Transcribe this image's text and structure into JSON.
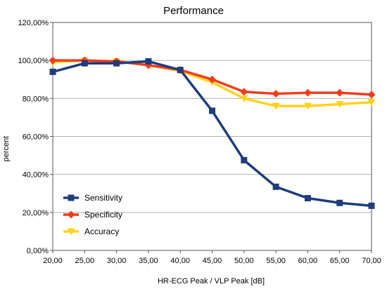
{
  "chart_data": {
    "type": "line",
    "title": "Performance",
    "xlabel": "HR-ECG Peak / VLP Peak [dB]",
    "ylabel": "percent",
    "x": [
      20,
      25,
      30,
      35,
      40,
      45,
      50,
      55,
      60,
      65,
      70
    ],
    "x_tick_labels": [
      "20,00",
      "25,00",
      "30,00",
      "35,00",
      "40,00",
      "45,00",
      "50,00",
      "55,00",
      "60,00",
      "65,00",
      "70,00"
    ],
    "ylim": [
      0,
      120
    ],
    "y_ticks": [
      0,
      20,
      40,
      60,
      80,
      100,
      120
    ],
    "y_tick_labels": [
      "0,00%",
      "20,00%",
      "40,00%",
      "60,00%",
      "80,00%",
      "100,00%",
      "120,00%"
    ],
    "grid": "horizontal",
    "legend_position": "bottom-left",
    "series": [
      {
        "name": "Sensitivity",
        "color": "#1f3d7a",
        "marker": "square",
        "values": [
          94,
          98.5,
          98.5,
          99.5,
          95,
          73.5,
          47.5,
          33.5,
          27.5,
          25,
          23.5
        ]
      },
      {
        "name": "Specificity",
        "color": "#f03c1e",
        "marker": "diamond",
        "values": [
          100,
          100,
          99.5,
          97.5,
          95,
          90,
          83.5,
          82.5,
          83,
          83,
          82
        ]
      },
      {
        "name": "Accuracy",
        "color": "#ffd21e",
        "marker": "triangle",
        "values": [
          99,
          100,
          99.5,
          97.5,
          94.5,
          88.5,
          80,
          76,
          76,
          77,
          78
        ]
      }
    ]
  }
}
